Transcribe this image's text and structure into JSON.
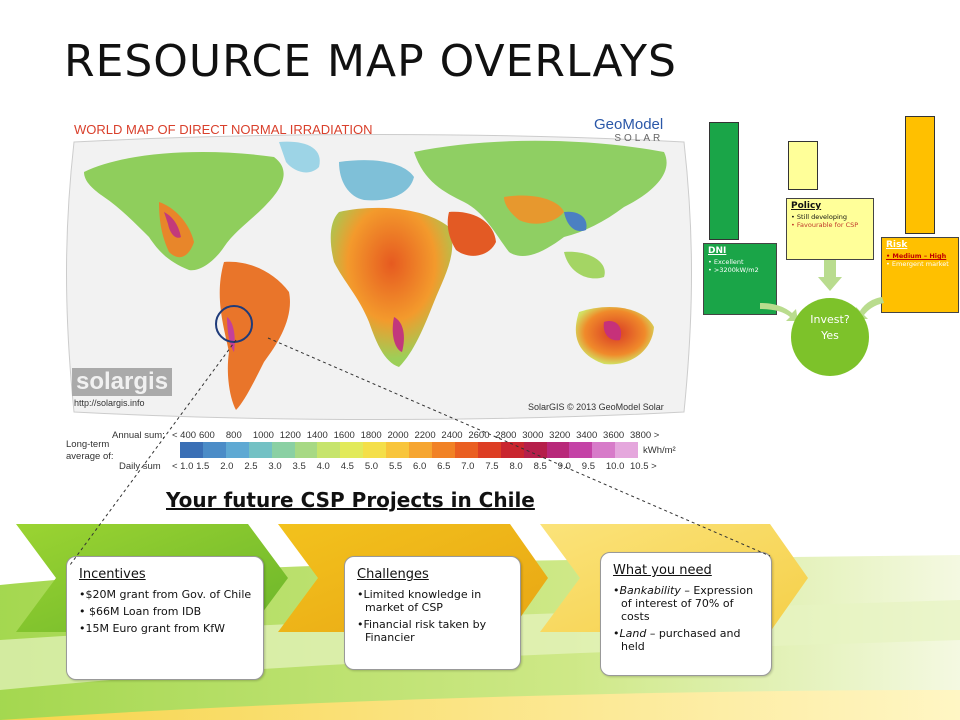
{
  "slide": {
    "title": "RESOURCE MAP OVERLAYS"
  },
  "map": {
    "title": "WORLD MAP OF DIRECT NORMAL IRRADIATION",
    "geomodel_line1": "GeoModel",
    "geomodel_line2": "SOLAR",
    "solargis_logo": "solargis",
    "solargis_url": "http://solargis.info",
    "copyright": "SolarGIS © 2013 GeoModel Solar",
    "legend": {
      "long_term_label_1": "Long-term",
      "long_term_label_2": "average of:",
      "annual_label": "Annual sum:",
      "daily_label": "Daily sum",
      "annual_ticks": [
        "< 400",
        "600",
        "800",
        "1000",
        "1200",
        "1400",
        "1600",
        "1800",
        "2000",
        "2200",
        "2400",
        "2600",
        "2800",
        "3000",
        "3200",
        "3400",
        "3600",
        "3800 >"
      ],
      "daily_ticks": [
        "< 1.0",
        "1.5",
        "2.0",
        "2.5",
        "3.0",
        "3.5",
        "4.0",
        "4.5",
        "5.0",
        "5.5",
        "6.0",
        "6.5",
        "7.0",
        "7.5",
        "8.0",
        "8.5",
        "9.0",
        "9.5",
        "10.0",
        "10.5 >"
      ],
      "unit": "kWh/m²",
      "colors": [
        "#3a6fb5",
        "#4b8cc7",
        "#5fa9d3",
        "#73c1c4",
        "#8ad0a3",
        "#a7d984",
        "#c6e46c",
        "#e2ea5b",
        "#f4df4a",
        "#f8c53c",
        "#f6a530",
        "#f18226",
        "#ea5f22",
        "#dd3e24",
        "#c9262f",
        "#b51f4a",
        "#b8287a",
        "#c443a6",
        "#d77bc9",
        "#e5a7dd"
      ]
    }
  },
  "headline": "Your future CSP Projects in Chile",
  "cards": [
    {
      "title": "Incentives",
      "items": [
        "$20M grant from Gov. of Chile",
        " $66M Loan from IDB",
        "15M Euro grant from KfW"
      ]
    },
    {
      "title": "Challenges",
      "items": [
        "Limited knowledge in market of CSP",
        "Financial risk taken by Financier"
      ]
    },
    {
      "title": "What you need",
      "items": [
        {
          "em": "Bankability",
          "rest": " – Expression of interest of 70% of costs"
        },
        {
          "em": "Land",
          "rest": " – purchased and held"
        }
      ]
    }
  ],
  "diagram": {
    "dni": {
      "title": "DNI",
      "items": [
        "Excellent",
        ">3200kW/m2"
      ],
      "color": "#1aa548"
    },
    "policy": {
      "title": "Policy",
      "items": [
        "Still developing",
        "Favourable for CSP"
      ],
      "color": "#ffff99"
    },
    "risk": {
      "title": "Risk",
      "items": [
        "Medium – High",
        "Emergent market"
      ],
      "color": "#ffc000"
    },
    "invest_line1": "Invest?",
    "invest_line2": "Yes",
    "bar_levels": {
      "dni": 0.97,
      "policy": 0.39,
      "risk": 0.97
    }
  }
}
